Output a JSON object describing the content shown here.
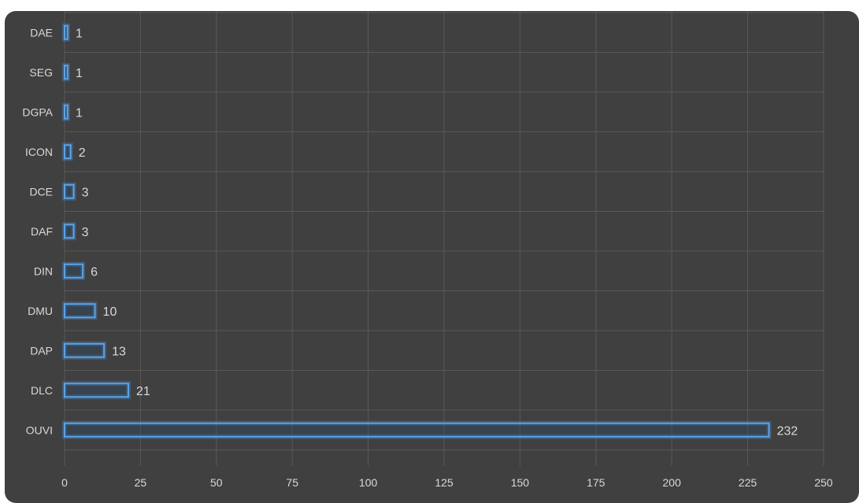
{
  "chart_data": {
    "type": "bar",
    "orientation": "horizontal",
    "categories": [
      "DAE",
      "SEG",
      "DGPA",
      "ICON",
      "DCE",
      "DAF",
      "DIN",
      "DMU",
      "DAP",
      "DLC",
      "OUVI"
    ],
    "values": [
      1,
      1,
      1,
      2,
      3,
      3,
      6,
      10,
      13,
      21,
      232
    ],
    "xlim": [
      0,
      250
    ],
    "x_ticks": [
      0,
      25,
      50,
      75,
      100,
      125,
      150,
      175,
      200,
      225,
      250
    ],
    "grid": true,
    "data_labels": true,
    "title": "",
    "xlabel": "",
    "ylabel": ""
  },
  "colors": {
    "background": "#404040",
    "bar_outline": "#5ba3e6",
    "text": "#d9d9d9",
    "grid": "#595959"
  }
}
